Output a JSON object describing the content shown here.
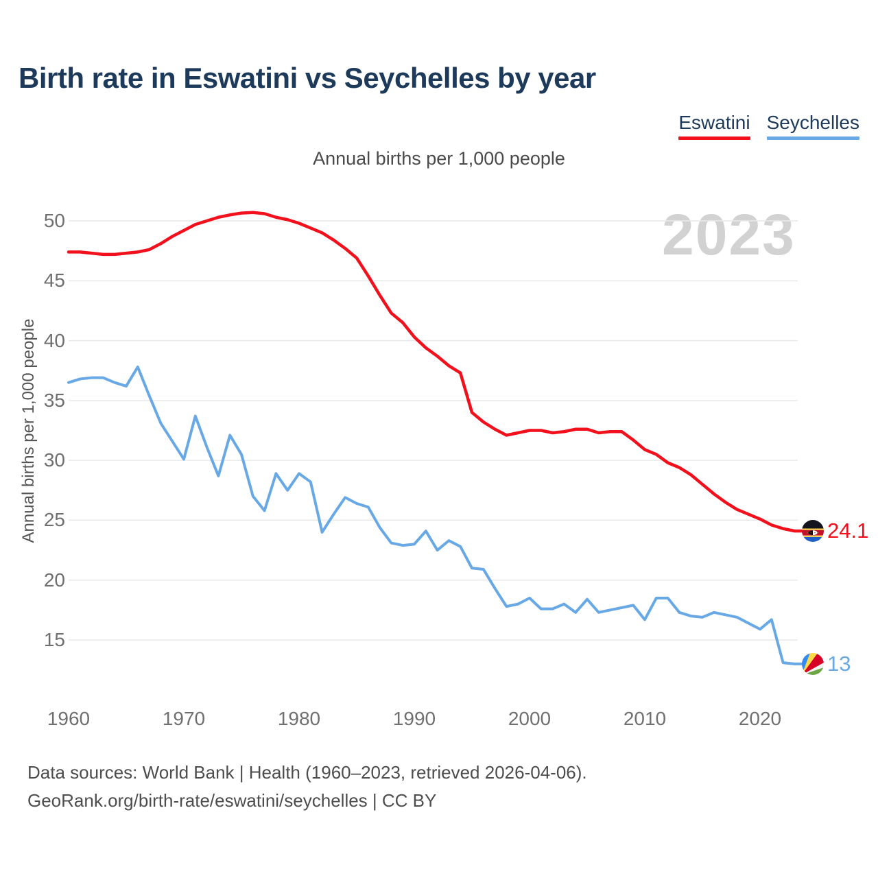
{
  "header": {
    "title": "Birth rate in Eswatini vs Seychelles by year"
  },
  "legend": {
    "items": [
      {
        "label": "Eswatini",
        "color": "#f2101c"
      },
      {
        "label": "Seychelles",
        "color": "#68a9e5"
      }
    ]
  },
  "chart": {
    "subtitle": "Annual births per 1,000 people",
    "watermark": "2023",
    "y_axis_title": "Annual births per 1,000 people"
  },
  "chart_data": {
    "type": "line",
    "title": "Birth rate in Eswatini vs Seychelles by year",
    "ylabel": "Annual births per 1,000 people",
    "xlabel": "",
    "grid": true,
    "legend_position": "top-right",
    "ylim": [
      12.5,
      51.5
    ],
    "y_ticks": [
      15,
      20,
      25,
      30,
      35,
      40,
      45,
      50
    ],
    "x_ticks": [
      1960,
      1970,
      1980,
      1990,
      2000,
      2010,
      2020
    ],
    "x": [
      1960,
      1961,
      1962,
      1963,
      1964,
      1965,
      1966,
      1967,
      1968,
      1969,
      1970,
      1971,
      1972,
      1973,
      1974,
      1975,
      1976,
      1977,
      1978,
      1979,
      1980,
      1981,
      1982,
      1983,
      1984,
      1985,
      1986,
      1987,
      1988,
      1989,
      1990,
      1991,
      1992,
      1993,
      1994,
      1995,
      1996,
      1997,
      1998,
      1999,
      2000,
      2001,
      2002,
      2003,
      2004,
      2005,
      2006,
      2007,
      2008,
      2009,
      2010,
      2011,
      2012,
      2013,
      2014,
      2015,
      2016,
      2017,
      2018,
      2019,
      2020,
      2021,
      2022,
      2023
    ],
    "series": [
      {
        "name": "Eswatini",
        "color": "#f2101c",
        "end_label": "24.1",
        "flag": "eswatini",
        "values": [
          47.4,
          47.4,
          47.3,
          47.2,
          47.2,
          47.3,
          47.4,
          47.6,
          48.1,
          48.7,
          49.2,
          49.7,
          50.0,
          50.3,
          50.5,
          50.65,
          50.7,
          50.6,
          50.3,
          50.1,
          49.8,
          49.4,
          49.0,
          48.4,
          47.7,
          46.9,
          45.4,
          43.8,
          42.3,
          41.5,
          40.3,
          39.4,
          38.7,
          37.9,
          37.3,
          34.0,
          33.2,
          32.6,
          32.1,
          32.3,
          32.5,
          32.5,
          32.3,
          32.4,
          32.6,
          32.6,
          32.3,
          32.4,
          32.4,
          31.7,
          30.9,
          30.5,
          29.8,
          29.4,
          28.8,
          28.0,
          27.2,
          26.5,
          25.9,
          25.5,
          25.1,
          24.6,
          24.3,
          24.1
        ]
      },
      {
        "name": "Seychelles",
        "color": "#68a9e5",
        "end_label": "13",
        "flag": "seychelles",
        "values": [
          36.5,
          36.8,
          36.9,
          36.9,
          36.5,
          36.2,
          37.8,
          35.4,
          33.1,
          31.6,
          30.1,
          33.7,
          31.1,
          28.7,
          32.1,
          30.5,
          27.0,
          25.8,
          28.9,
          27.5,
          28.9,
          28.2,
          24.0,
          25.5,
          26.9,
          26.4,
          26.1,
          24.4,
          23.1,
          22.9,
          23.0,
          24.1,
          22.5,
          23.3,
          22.8,
          21.0,
          20.9,
          19.3,
          17.8,
          18.0,
          18.5,
          17.6,
          17.6,
          18.0,
          17.3,
          18.4,
          17.3,
          17.5,
          17.7,
          17.9,
          16.7,
          18.5,
          18.5,
          17.3,
          17.0,
          16.9,
          17.3,
          17.1,
          16.9,
          16.4,
          15.9,
          16.7,
          13.1,
          13.0
        ]
      }
    ]
  },
  "footer": {
    "line1": "Data sources: World Bank | Health (1960–2023, retrieved 2026-04-06).",
    "line2": "GeoRank.org/birth-rate/eswatini/seychelles | CC BY"
  }
}
